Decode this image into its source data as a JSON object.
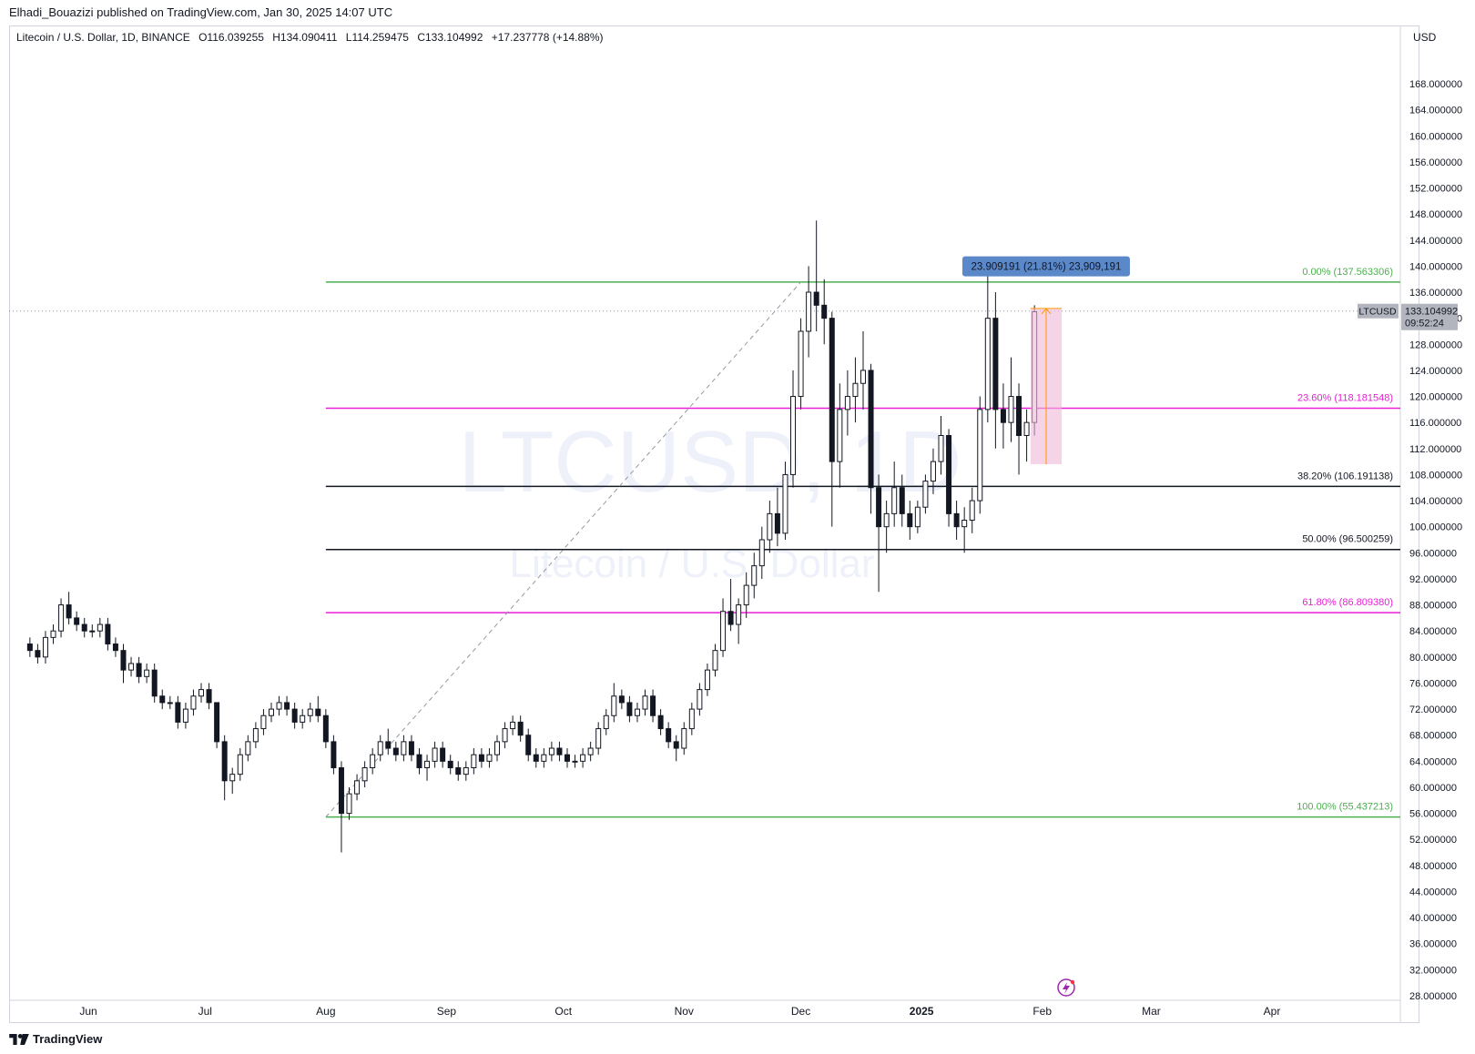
{
  "publisher_line": "Elhadi_Bouazizi published on TradingView.com, Jan 30, 2025 14:07 UTC",
  "legend": {
    "symbol": "Litecoin / U.S. Dollar, 1D, BINANCE",
    "open": "O116.039255",
    "high": "H134.090411",
    "low": "L114.259475",
    "close": "C133.104992",
    "change": "+17.237778 (+14.88%)"
  },
  "currency": "USD",
  "watermark": {
    "line1": "LTCUSD, 1D",
    "line2": "Litecoin / U.S. Dollar"
  },
  "footer": {
    "brand": "TradingView"
  },
  "colors": {
    "green": "#4caf50",
    "magenta": "#e91ed6",
    "black": "#131722",
    "up": "#ffffff",
    "down": "#131722",
    "badge": "#5b88c9",
    "range": "#f0b7d8"
  },
  "chart_data": {
    "type": "candlestick",
    "symbol": "LTCUSD",
    "timeframe": "1D",
    "ylim": [
      28,
      168
    ],
    "y_ticks": [
      "28.000000",
      "32.000000",
      "36.000000",
      "40.000000",
      "44.000000",
      "48.000000",
      "52.000000",
      "56.000000",
      "60.000000",
      "64.000000",
      "68.000000",
      "72.000000",
      "76.000000",
      "80.000000",
      "84.000000",
      "88.000000",
      "92.000000",
      "96.000000",
      "100.000000",
      "104.000000",
      "108.000000",
      "112.000000",
      "116.000000",
      "120.000000",
      "124.000000",
      "128.000000",
      "132.000000",
      "136.000000",
      "140.000000",
      "144.000000",
      "148.000000",
      "152.000000",
      "156.000000",
      "160.000000",
      "164.000000",
      "168.000000"
    ],
    "x_ticks": [
      {
        "label": "Jun",
        "date": "2024-06-01"
      },
      {
        "label": "Jul",
        "date": "2024-07-01"
      },
      {
        "label": "Aug",
        "date": "2024-08-01"
      },
      {
        "label": "Sep",
        "date": "2024-09-01"
      },
      {
        "label": "Oct",
        "date": "2024-10-01"
      },
      {
        "label": "Nov",
        "date": "2024-11-01"
      },
      {
        "label": "Dec",
        "date": "2024-12-01"
      },
      {
        "label": "2025",
        "date": "2025-01-01"
      },
      {
        "label": "Feb",
        "date": "2025-02-01"
      },
      {
        "label": "Mar",
        "date": "2025-03-01"
      },
      {
        "label": "Apr",
        "date": "2025-04-01"
      }
    ],
    "current_price": {
      "tag": "LTCUSD",
      "value": "133.104992",
      "countdown": "09:52:24",
      "price": 133.104992
    },
    "fib_levels": [
      {
        "label": "0.00% (137.563306)",
        "price": 137.563306,
        "color": "#4caf50"
      },
      {
        "label": "23.60% (118.181548)",
        "price": 118.181548,
        "color": "#e91ed6"
      },
      {
        "label": "38.20% (106.191138)",
        "price": 106.191138,
        "color": "#131722"
      },
      {
        "label": "50.00% (96.500259)",
        "price": 96.500259,
        "color": "#131722"
      },
      {
        "label": "61.80% (86.809380)",
        "price": 86.80938,
        "color": "#e91ed6"
      },
      {
        "label": "100.00% (55.437213)",
        "price": 55.437213,
        "color": "#4caf50"
      }
    ],
    "fib_start_date": "2024-08-01",
    "fib_trend": {
      "from": {
        "date": "2024-08-01",
        "price": 55.437213
      },
      "to": {
        "date": "2024-12-01",
        "price": 137.563306
      }
    },
    "measure": {
      "label": "23.909191 (21.81%) 23,909,191",
      "from": {
        "date": "2025-01-29",
        "price": 109.6
      },
      "to": {
        "date": "2025-02-06",
        "price": 133.5
      }
    },
    "candles": [
      [
        "2024-05-17",
        82,
        83,
        80,
        81
      ],
      [
        "2024-05-19",
        81,
        82,
        79,
        80
      ],
      [
        "2024-05-21",
        80,
        84,
        79,
        83
      ],
      [
        "2024-05-23",
        83,
        85,
        82,
        84
      ],
      [
        "2024-05-25",
        84,
        89,
        83,
        88
      ],
      [
        "2024-05-27",
        88,
        90,
        85,
        86
      ],
      [
        "2024-05-29",
        86,
        87,
        84,
        85
      ],
      [
        "2024-05-31",
        85,
        86,
        83,
        84
      ],
      [
        "2024-06-02",
        84,
        85,
        83,
        84
      ],
      [
        "2024-06-04",
        84,
        86,
        83,
        85
      ],
      [
        "2024-06-06",
        85,
        86,
        81,
        82
      ],
      [
        "2024-06-08",
        82,
        83,
        80,
        81
      ],
      [
        "2024-06-10",
        81,
        82,
        76,
        78
      ],
      [
        "2024-06-12",
        78,
        80,
        77,
        79
      ],
      [
        "2024-06-14",
        79,
        80,
        76,
        77
      ],
      [
        "2024-06-16",
        77,
        79,
        76,
        78
      ],
      [
        "2024-06-18",
        78,
        79,
        73,
        74
      ],
      [
        "2024-06-20",
        74,
        75,
        72,
        73
      ],
      [
        "2024-06-22",
        73,
        74,
        72,
        73
      ],
      [
        "2024-06-24",
        73,
        74,
        69,
        70
      ],
      [
        "2024-06-26",
        70,
        73,
        69,
        72
      ],
      [
        "2024-06-28",
        72,
        75,
        71,
        74
      ],
      [
        "2024-06-30",
        74,
        76,
        73,
        75
      ],
      [
        "2024-07-02",
        75,
        76,
        72,
        73
      ],
      [
        "2024-07-04",
        73,
        73,
        66,
        67
      ],
      [
        "2024-07-06",
        67,
        68,
        58,
        61
      ],
      [
        "2024-07-08",
        61,
        63,
        59,
        62
      ],
      [
        "2024-07-10",
        62,
        66,
        61,
        65
      ],
      [
        "2024-07-12",
        65,
        68,
        64,
        67
      ],
      [
        "2024-07-14",
        67,
        70,
        66,
        69
      ],
      [
        "2024-07-16",
        69,
        72,
        68,
        71
      ],
      [
        "2024-07-18",
        71,
        73,
        70,
        72
      ],
      [
        "2024-07-20",
        72,
        74,
        71,
        73
      ],
      [
        "2024-07-22",
        73,
        74,
        71,
        72
      ],
      [
        "2024-07-24",
        72,
        73,
        69,
        70
      ],
      [
        "2024-07-26",
        70,
        72,
        69,
        71
      ],
      [
        "2024-07-28",
        71,
        73,
        70,
        72
      ],
      [
        "2024-07-30",
        72,
        74,
        70,
        71
      ],
      [
        "2024-08-01",
        71,
        72,
        66,
        67
      ],
      [
        "2024-08-03",
        67,
        68,
        62,
        63
      ],
      [
        "2024-08-05",
        63,
        64,
        50,
        56
      ],
      [
        "2024-08-07",
        56,
        60,
        55,
        59
      ],
      [
        "2024-08-09",
        59,
        62,
        58,
        61
      ],
      [
        "2024-08-11",
        61,
        64,
        60,
        63
      ],
      [
        "2024-08-13",
        63,
        66,
        62,
        65
      ],
      [
        "2024-08-15",
        65,
        68,
        64,
        67
      ],
      [
        "2024-08-17",
        67,
        69,
        65,
        66
      ],
      [
        "2024-08-19",
        66,
        67,
        64,
        65
      ],
      [
        "2024-08-21",
        65,
        68,
        64,
        67
      ],
      [
        "2024-08-23",
        67,
        68,
        64,
        65
      ],
      [
        "2024-08-25",
        65,
        66,
        62,
        63
      ],
      [
        "2024-08-27",
        63,
        65,
        61,
        64
      ],
      [
        "2024-08-29",
        64,
        67,
        63,
        66
      ],
      [
        "2024-08-31",
        66,
        67,
        63,
        64
      ],
      [
        "2024-09-02",
        64,
        65,
        62,
        63
      ],
      [
        "2024-09-04",
        63,
        64,
        61,
        62
      ],
      [
        "2024-09-06",
        62,
        64,
        61,
        63
      ],
      [
        "2024-09-08",
        63,
        66,
        62,
        65
      ],
      [
        "2024-09-10",
        65,
        66,
        63,
        64
      ],
      [
        "2024-09-12",
        64,
        66,
        63,
        65
      ],
      [
        "2024-09-14",
        65,
        68,
        64,
        67
      ],
      [
        "2024-09-16",
        67,
        70,
        66,
        69
      ],
      [
        "2024-09-18",
        69,
        71,
        68,
        70
      ],
      [
        "2024-09-20",
        70,
        71,
        67,
        68
      ],
      [
        "2024-09-22",
        68,
        69,
        64,
        65
      ],
      [
        "2024-09-24",
        65,
        66,
        63,
        64
      ],
      [
        "2024-09-26",
        64,
        66,
        63,
        65
      ],
      [
        "2024-09-28",
        65,
        67,
        64,
        66
      ],
      [
        "2024-09-30",
        66,
        67,
        64,
        65
      ],
      [
        "2024-10-02",
        65,
        66,
        63,
        64
      ],
      [
        "2024-10-04",
        64,
        65,
        63,
        64
      ],
      [
        "2024-10-06",
        64,
        66,
        63,
        65
      ],
      [
        "2024-10-08",
        65,
        67,
        64,
        66
      ],
      [
        "2024-10-10",
        66,
        70,
        65,
        69
      ],
      [
        "2024-10-12",
        69,
        72,
        68,
        71
      ],
      [
        "2024-10-14",
        71,
        76,
        70,
        74
      ],
      [
        "2024-10-16",
        74,
        75,
        72,
        73
      ],
      [
        "2024-10-18",
        73,
        74,
        70,
        71
      ],
      [
        "2024-10-20",
        71,
        73,
        70,
        72
      ],
      [
        "2024-10-22",
        72,
        75,
        71,
        74
      ],
      [
        "2024-10-24",
        74,
        75,
        70,
        71
      ],
      [
        "2024-10-26",
        71,
        72,
        68,
        69
      ],
      [
        "2024-10-28",
        69,
        70,
        66,
        67
      ],
      [
        "2024-10-30",
        67,
        68,
        64,
        66
      ],
      [
        "2024-11-01",
        66,
        70,
        65,
        69
      ],
      [
        "2024-11-03",
        69,
        73,
        68,
        72
      ],
      [
        "2024-11-05",
        72,
        76,
        71,
        75
      ],
      [
        "2024-11-07",
        75,
        79,
        74,
        78
      ],
      [
        "2024-11-09",
        78,
        82,
        77,
        81
      ],
      [
        "2024-11-11",
        81,
        89,
        80,
        87
      ],
      [
        "2024-11-13",
        87,
        92,
        84,
        85
      ],
      [
        "2024-11-15",
        85,
        89,
        82,
        88
      ],
      [
        "2024-11-17",
        88,
        93,
        86,
        91
      ],
      [
        "2024-11-19",
        91,
        96,
        89,
        94
      ],
      [
        "2024-11-21",
        94,
        100,
        92,
        98
      ],
      [
        "2024-11-23",
        98,
        104,
        96,
        102
      ],
      [
        "2024-11-25",
        102,
        106,
        97,
        99
      ],
      [
        "2024-11-27",
        99,
        110,
        98,
        108
      ],
      [
        "2024-11-29",
        108,
        124,
        106,
        120
      ],
      [
        "2024-12-01",
        120,
        132,
        118,
        130
      ],
      [
        "2024-12-03",
        130,
        140,
        126,
        136
      ],
      [
        "2024-12-05",
        136,
        147,
        130,
        134
      ],
      [
        "2024-12-07",
        134,
        138,
        128,
        132
      ],
      [
        "2024-12-09",
        132,
        133,
        100,
        110
      ],
      [
        "2024-12-11",
        110,
        122,
        106,
        118
      ],
      [
        "2024-12-13",
        118,
        124,
        114,
        120
      ],
      [
        "2024-12-15",
        120,
        126,
        116,
        122
      ],
      [
        "2024-12-17",
        122,
        130,
        118,
        124
      ],
      [
        "2024-12-19",
        124,
        125,
        102,
        106
      ],
      [
        "2024-12-21",
        106,
        108,
        90,
        100
      ],
      [
        "2024-12-23",
        100,
        104,
        96,
        102
      ],
      [
        "2024-12-25",
        102,
        110,
        100,
        106
      ],
      [
        "2024-12-27",
        106,
        108,
        100,
        102
      ],
      [
        "2024-12-29",
        102,
        104,
        98,
        100
      ],
      [
        "2024-12-31",
        100,
        104,
        99,
        103
      ],
      [
        "2025-01-02",
        103,
        108,
        102,
        107
      ],
      [
        "2025-01-04",
        107,
        112,
        105,
        110
      ],
      [
        "2025-01-06",
        110,
        117,
        108,
        114
      ],
      [
        "2025-01-08",
        114,
        115,
        100,
        102
      ],
      [
        "2025-01-10",
        102,
        104,
        98,
        100
      ],
      [
        "2025-01-12",
        100,
        103,
        96,
        101
      ],
      [
        "2025-01-14",
        101,
        106,
        99,
        104
      ],
      [
        "2025-01-16",
        104,
        120,
        102,
        118
      ],
      [
        "2025-01-18",
        118,
        141,
        116,
        132
      ],
      [
        "2025-01-20",
        132,
        136,
        112,
        118
      ],
      [
        "2025-01-22",
        118,
        122,
        112,
        116
      ],
      [
        "2025-01-24",
        116,
        126,
        113,
        120
      ],
      [
        "2025-01-26",
        120,
        122,
        108,
        114
      ],
      [
        "2025-01-28",
        114,
        118,
        110,
        116
      ],
      [
        "2025-01-30",
        116,
        134,
        114,
        133
      ]
    ]
  }
}
